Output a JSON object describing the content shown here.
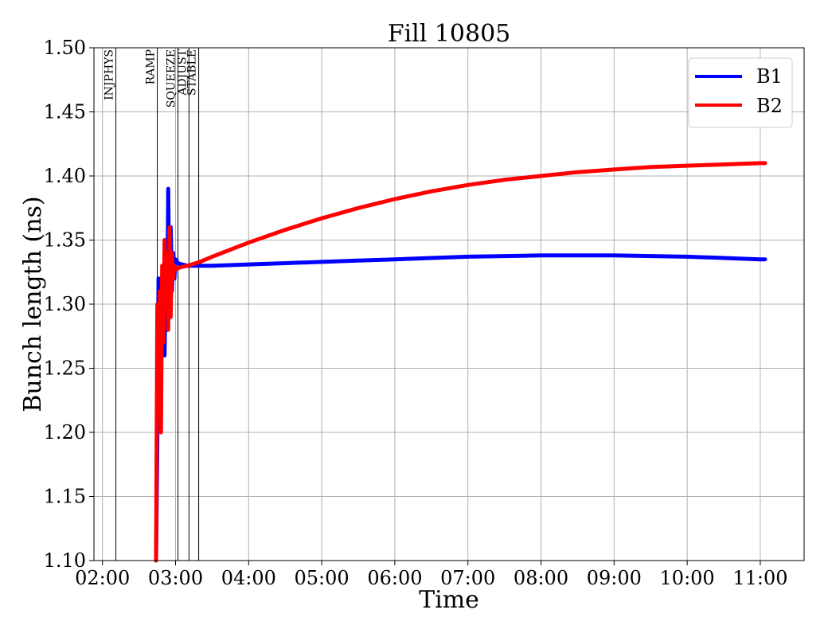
{
  "chart_data": {
    "type": "line",
    "title": "Fill 10805",
    "xlabel": "Time",
    "ylabel": "Bunch length (ns)",
    "xlim": [
      "01:53",
      "11:36"
    ],
    "ylim": [
      1.1,
      1.5
    ],
    "x_ticks": [
      "02:00",
      "03:00",
      "04:00",
      "05:00",
      "06:00",
      "07:00",
      "08:00",
      "09:00",
      "10:00",
      "11:00"
    ],
    "y_ticks": [
      "1.10",
      "1.15",
      "1.20",
      "1.25",
      "1.30",
      "1.35",
      "1.40",
      "1.45",
      "1.50"
    ],
    "grid": true,
    "legend_position": "top-right",
    "phases": [
      {
        "label": "INJPHYS",
        "time": "02:11"
      },
      {
        "label": "RAMP",
        "time": "02:45"
      },
      {
        "label": "SQUEEZE",
        "time": "03:02"
      },
      {
        "label": "ADJUST",
        "time": "03:11"
      },
      {
        "label": "STABLE",
        "time": "03:19"
      }
    ],
    "series": [
      {
        "name": "B1",
        "color": "#0000ff",
        "x": [
          "02:44",
          "02:45",
          "02:46",
          "02:47",
          "02:48",
          "02:49",
          "02:50",
          "02:51",
          "02:52",
          "02:53",
          "02:54",
          "02:55",
          "02:56",
          "02:57",
          "02:58",
          "02:59",
          "03:00",
          "03:02",
          "03:05",
          "03:10",
          "03:20",
          "03:30",
          "04:00",
          "04:30",
          "05:00",
          "05:30",
          "06:00",
          "06:30",
          "07:00",
          "07:30",
          "08:00",
          "08:30",
          "09:00",
          "09:30",
          "10:00",
          "10:30",
          "11:00",
          "11:04"
        ],
        "y": [
          1.1,
          1.19,
          1.32,
          1.24,
          1.31,
          1.27,
          1.3,
          1.26,
          1.33,
          1.28,
          1.39,
          1.29,
          1.36,
          1.31,
          1.34,
          1.32,
          1.335,
          1.332,
          1.331,
          1.33,
          1.33,
          1.33,
          1.331,
          1.332,
          1.333,
          1.334,
          1.335,
          1.336,
          1.337,
          1.3375,
          1.338,
          1.338,
          1.338,
          1.3375,
          1.337,
          1.336,
          1.335,
          1.335
        ]
      },
      {
        "name": "B2",
        "color": "#ff0000",
        "x": [
          "02:44",
          "02:45",
          "02:46",
          "02:47",
          "02:48",
          "02:49",
          "02:50",
          "02:51",
          "02:52",
          "02:53",
          "02:54",
          "02:55",
          "02:56",
          "02:57",
          "02:58",
          "02:59",
          "03:00",
          "03:02",
          "03:05",
          "03:10",
          "03:20",
          "03:30",
          "04:00",
          "04:30",
          "05:00",
          "05:30",
          "06:00",
          "06:30",
          "07:00",
          "07:30",
          "08:00",
          "08:30",
          "09:00",
          "09:30",
          "10:00",
          "10:30",
          "11:00",
          "11:04"
        ],
        "y": [
          1.1,
          1.3,
          1.22,
          1.31,
          1.2,
          1.33,
          1.27,
          1.35,
          1.3,
          1.34,
          1.28,
          1.36,
          1.29,
          1.34,
          1.32,
          1.33,
          1.327,
          1.328,
          1.329,
          1.33,
          1.333,
          1.337,
          1.348,
          1.358,
          1.367,
          1.375,
          1.382,
          1.388,
          1.393,
          1.397,
          1.4,
          1.403,
          1.405,
          1.407,
          1.408,
          1.409,
          1.41,
          1.41
        ]
      }
    ]
  }
}
